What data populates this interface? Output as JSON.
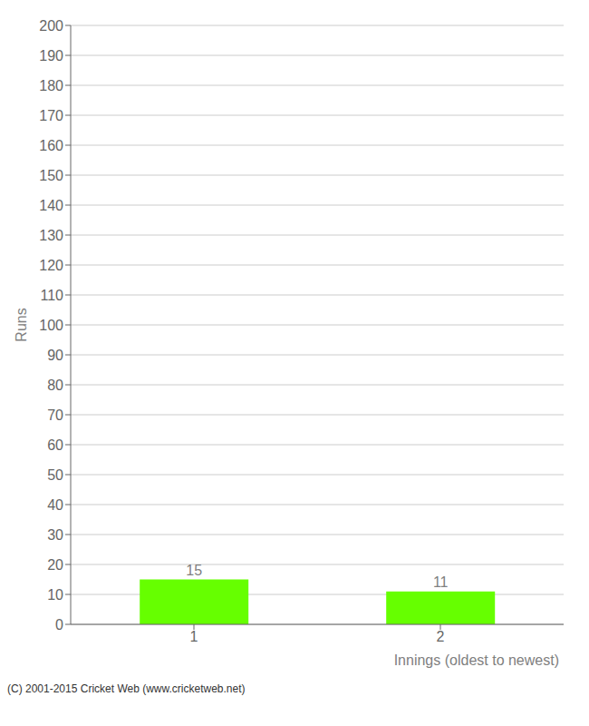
{
  "chart_data": {
    "type": "bar",
    "categories": [
      "1",
      "2"
    ],
    "values": [
      15,
      11
    ],
    "color": "#66ff00",
    "ylabel": "Runs",
    "xlabel": "Innings (oldest to newest)",
    "ylim": [
      0,
      200
    ],
    "yticks": [
      0,
      10,
      20,
      30,
      40,
      50,
      60,
      70,
      80,
      90,
      100,
      110,
      120,
      130,
      140,
      150,
      160,
      170,
      180,
      190,
      200
    ],
    "grid": true,
    "data_labels": true,
    "annotations": [
      "(C) 2001-2015 Cricket Web (www.cricketweb.net)"
    ]
  }
}
